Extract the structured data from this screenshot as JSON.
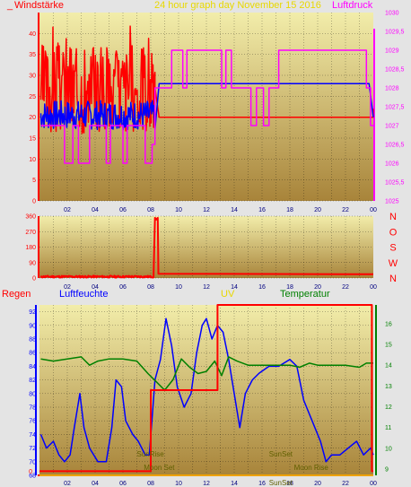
{
  "header": {
    "left_label": "Windstärke",
    "title": "24 hour graph day  November 15 2016",
    "right_label": "Luftdruck"
  },
  "colors": {
    "background": "#e4e4e4",
    "plot_top": "#f2edaa",
    "plot_bottom": "#a8843a",
    "grid": "#000000",
    "red": "#ff0000",
    "blue": "#0000ff",
    "magenta": "#ff00ff",
    "green": "#008000",
    "yellow": "#e8d800",
    "olive_text": "#606000"
  },
  "chart_data": [
    {
      "id": "wind_pressure",
      "type": "line",
      "x_range": [
        0,
        24
      ],
      "x_ticks": [
        "02",
        "04",
        "06",
        "08",
        "10",
        "12",
        "14",
        "16",
        "18",
        "20",
        "22",
        "00"
      ],
      "left_axis": {
        "label": "Windstärke",
        "range": [
          0,
          45
        ],
        "ticks": [
          "0",
          "5",
          "10",
          "15",
          "20",
          "25",
          "30",
          "35",
          "40"
        ]
      },
      "right_axis": {
        "label": "Luftdruck",
        "range": [
          1025,
          1030
        ],
        "ticks": [
          "1025",
          "1025,5",
          "1026",
          "1026,5",
          "1027",
          "1027,5",
          "1028",
          "1028,5",
          "1029",
          "1029,5",
          "1030"
        ]
      },
      "series": [
        {
          "name": "wind_gust",
          "axis": "left",
          "color": "red",
          "noisy": {
            "from": 0.1,
            "to": 8.3,
            "base": 27,
            "amp": 11,
            "seed": 3
          },
          "points": [
            [
              8.3,
              27
            ],
            [
              8.6,
              20
            ],
            [
              24,
              20
            ],
            [
              24,
              22
            ]
          ]
        },
        {
          "name": "wind_avg",
          "axis": "left",
          "color": "blue",
          "noisy": {
            "from": 0.1,
            "to": 8.3,
            "base": 20.5,
            "amp": 3.5,
            "seed": 7
          },
          "points": [
            [
              8.3,
              17
            ],
            [
              8.6,
              28
            ],
            [
              23.7,
              28
            ],
            [
              24,
              20
            ]
          ]
        },
        {
          "name": "pressure",
          "axis": "right",
          "color": "magenta",
          "points": [
            [
              0.1,
              1027
            ],
            [
              1.8,
              1027
            ],
            [
              1.8,
              1026
            ],
            [
              2.4,
              1026
            ],
            [
              2.4,
              1027
            ],
            [
              2.8,
              1027
            ],
            [
              2.8,
              1026
            ],
            [
              3.6,
              1026
            ],
            [
              3.6,
              1027
            ],
            [
              4.8,
              1027
            ],
            [
              4.8,
              1026
            ],
            [
              5.1,
              1026
            ],
            [
              5.1,
              1027
            ],
            [
              6.0,
              1027
            ],
            [
              6.0,
              1026
            ],
            [
              6.3,
              1026
            ],
            [
              6.3,
              1027
            ],
            [
              7.6,
              1027
            ],
            [
              7.6,
              1026
            ],
            [
              8.1,
              1026
            ],
            [
              8.1,
              1026.5
            ],
            [
              8.3,
              1026.5
            ],
            [
              8.3,
              1028
            ],
            [
              9.5,
              1028
            ],
            [
              9.5,
              1029
            ],
            [
              10.3,
              1029
            ],
            [
              10.3,
              1028
            ],
            [
              10.6,
              1028
            ],
            [
              10.6,
              1029
            ],
            [
              13.1,
              1029
            ],
            [
              13.1,
              1028
            ],
            [
              13.4,
              1028
            ],
            [
              13.4,
              1029
            ],
            [
              13.8,
              1029
            ],
            [
              13.8,
              1028
            ],
            [
              15.2,
              1028
            ],
            [
              15.2,
              1027
            ],
            [
              15.6,
              1027
            ],
            [
              15.6,
              1028
            ],
            [
              16.1,
              1028
            ],
            [
              16.1,
              1027
            ],
            [
              16.5,
              1027
            ],
            [
              16.5,
              1028
            ],
            [
              17.2,
              1028
            ],
            [
              17.2,
              1029
            ],
            [
              23.5,
              1029
            ],
            [
              23.5,
              1028
            ],
            [
              23.8,
              1028
            ],
            [
              23.8,
              1027
            ],
            [
              24,
              1027
            ]
          ]
        }
      ]
    },
    {
      "id": "wind_direction",
      "type": "line",
      "x_range": [
        0,
        24
      ],
      "x_ticks": [
        "02",
        "04",
        "06",
        "08",
        "10",
        "12",
        "14",
        "16",
        "18",
        "20",
        "22",
        "00"
      ],
      "left_axis": {
        "range": [
          0,
          360
        ],
        "ticks": [
          "0",
          "90",
          "180",
          "270",
          "360"
        ]
      },
      "right_labels": [
        "N",
        "W",
        "S",
        "O",
        "N"
      ],
      "series": [
        {
          "name": "direction",
          "color": "red",
          "noisy": {
            "from": 0.1,
            "to": 8.2,
            "base": 8,
            "amp": 6,
            "seed": 11
          },
          "points": [
            [
              8.2,
              10
            ],
            [
              8.3,
              350
            ],
            [
              8.4,
              340
            ],
            [
              8.5,
              350
            ],
            [
              8.55,
              25
            ],
            [
              24,
              22
            ]
          ]
        }
      ]
    },
    {
      "id": "climate",
      "type": "line",
      "x_range": [
        0,
        24
      ],
      "x_ticks": [
        "02",
        "04",
        "06",
        "08",
        "10",
        "12",
        "14",
        "16",
        "18",
        "20",
        "22",
        "00"
      ],
      "headers": {
        "regen": "Regen",
        "luftfeuchte": "Luftfeuchte",
        "uv": "UV",
        "temperatur": "Temperatur"
      },
      "left_axis": {
        "label": "Luftfeuchte",
        "range": [
          68,
          93
        ],
        "ticks": [
          "68",
          "70",
          "72",
          "74",
          "76",
          "78",
          "80",
          "82",
          "84",
          "86",
          "88",
          "90",
          "92"
        ]
      },
      "right_axis": {
        "label": "Temperatur",
        "range": [
          8.7,
          16.9
        ],
        "ticks": [
          "9",
          "10",
          "11",
          "12",
          "13",
          "14",
          "15",
          "16"
        ]
      },
      "rain_axis": {
        "label": "Regen",
        "ticks": [
          "0"
        ]
      },
      "series": [
        {
          "name": "humidity",
          "axis": "left",
          "color": "blue",
          "points": [
            [
              0.1,
              74
            ],
            [
              0.5,
              72
            ],
            [
              1.0,
              73
            ],
            [
              1.4,
              71
            ],
            [
              1.8,
              70
            ],
            [
              2.2,
              71
            ],
            [
              2.5,
              75
            ],
            [
              2.9,
              80
            ],
            [
              3.2,
              75
            ],
            [
              3.6,
              72
            ],
            [
              4.2,
              70
            ],
            [
              4.8,
              70
            ],
            [
              5.2,
              75
            ],
            [
              5.5,
              82
            ],
            [
              5.9,
              81
            ],
            [
              6.2,
              76
            ],
            [
              6.7,
              74
            ],
            [
              7.1,
              73
            ],
            [
              7.6,
              71
            ],
            [
              7.9,
              71
            ],
            [
              8.3,
              82
            ],
            [
              8.7,
              85
            ],
            [
              9.1,
              91
            ],
            [
              9.5,
              87
            ],
            [
              9.9,
              81
            ],
            [
              10.4,
              78
            ],
            [
              10.9,
              80
            ],
            [
              11.3,
              86
            ],
            [
              11.7,
              90
            ],
            [
              12.0,
              91
            ],
            [
              12.4,
              88
            ],
            [
              12.8,
              90
            ],
            [
              13.2,
              89
            ],
            [
              13.6,
              85
            ],
            [
              14.0,
              80
            ],
            [
              14.4,
              75
            ],
            [
              14.8,
              80
            ],
            [
              15.3,
              82
            ],
            [
              15.8,
              83
            ],
            [
              16.5,
              84
            ],
            [
              17.2,
              84
            ],
            [
              18.0,
              85
            ],
            [
              18.5,
              84
            ],
            [
              19.0,
              79
            ],
            [
              19.6,
              76
            ],
            [
              20.2,
              73
            ],
            [
              20.6,
              70
            ],
            [
              21.0,
              71
            ],
            [
              21.6,
              71
            ],
            [
              22.2,
              72
            ],
            [
              22.8,
              73
            ],
            [
              23.3,
              71
            ],
            [
              23.8,
              72
            ],
            [
              24,
              71
            ]
          ]
        },
        {
          "name": "temperature",
          "axis": "right",
          "color": "green",
          "points": [
            [
              0.1,
              14.3
            ],
            [
              1.0,
              14.2
            ],
            [
              2.0,
              14.3
            ],
            [
              3.0,
              14.4
            ],
            [
              3.6,
              14.0
            ],
            [
              4.2,
              14.2
            ],
            [
              5.0,
              14.3
            ],
            [
              6.0,
              14.3
            ],
            [
              7.0,
              14.2
            ],
            [
              7.8,
              13.6
            ],
            [
              8.4,
              13.2
            ],
            [
              9.0,
              12.8
            ],
            [
              9.6,
              13.3
            ],
            [
              10.2,
              14.3
            ],
            [
              10.8,
              13.9
            ],
            [
              11.4,
              13.6
            ],
            [
              12.0,
              13.7
            ],
            [
              12.6,
              14.2
            ],
            [
              13.1,
              13.5
            ],
            [
              13.6,
              14.4
            ],
            [
              14.2,
              14.2
            ],
            [
              15.0,
              14.0
            ],
            [
              16.0,
              14.0
            ],
            [
              17.0,
              14.0
            ],
            [
              18.0,
              14.0
            ],
            [
              18.7,
              13.9
            ],
            [
              19.4,
              14.1
            ],
            [
              20.0,
              14.0
            ],
            [
              21.0,
              14.0
            ],
            [
              22.0,
              14.0
            ],
            [
              23.0,
              13.9
            ],
            [
              23.5,
              14.1
            ],
            [
              24,
              14.1
            ]
          ]
        },
        {
          "name": "uv",
          "axis": "right",
          "color": "red",
          "points": [
            [
              0,
              8.9
            ],
            [
              8.0,
              8.9
            ],
            [
              8.0,
              12.8
            ],
            [
              12.8,
              12.8
            ],
            [
              12.8,
              16.9
            ],
            [
              23.9,
              16.9
            ],
            [
              23.9,
              8.9
            ],
            [
              24,
              8.9
            ]
          ]
        },
        {
          "name": "rain",
          "axis": "left",
          "color": "yellow",
          "points": [
            [
              0,
              68
            ],
            [
              24,
              68
            ]
          ]
        }
      ],
      "annotations": [
        {
          "text": "SunRise",
          "x": 7.0
        },
        {
          "text": "SunSet",
          "x": 16.5
        },
        {
          "text": "Moon Set",
          "x": 7.5
        },
        {
          "text": "Moon Rise",
          "x": 18.3
        },
        {
          "text": "SunSet",
          "x": 16.5,
          "row": "axis"
        }
      ]
    }
  ]
}
